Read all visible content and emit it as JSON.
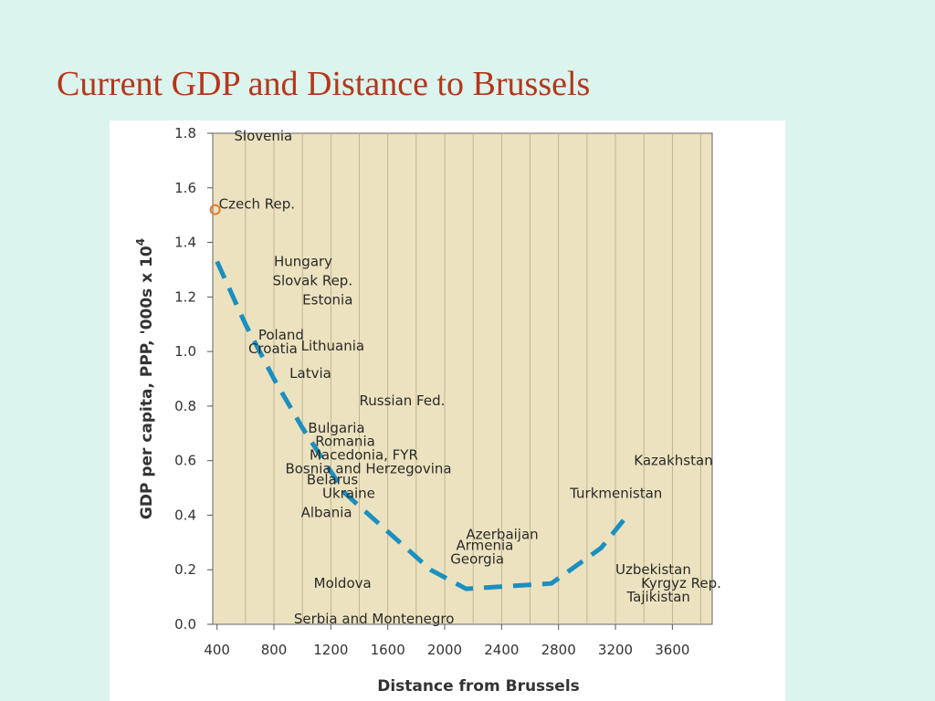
{
  "slide": {
    "title": "Current GDP and Distance to Brussels"
  },
  "chart_data": {
    "type": "scatter",
    "xlabel": "Distance from Brussels",
    "ylabel": "GDP per capita,  PPP, '000s x 10",
    "ylabel_sup": "4",
    "xlim": [
      370,
      3880
    ],
    "ylim": [
      0,
      1.8
    ],
    "xticks": [
      400,
      800,
      1200,
      1600,
      2000,
      2400,
      2800,
      3200,
      3600
    ],
    "yticks": [
      0.0,
      0.2,
      0.4,
      0.6,
      0.8,
      1.0,
      1.2,
      1.4,
      1.6,
      1.8
    ],
    "ytick_labels": [
      "0.0",
      "0.2",
      "0.4",
      "0.6",
      "0.8",
      "1.0",
      "1.2",
      "1.4",
      "1.6",
      "1.8"
    ],
    "grid": true,
    "plot_background": "#ece2bf",
    "trend_color": "#1b8fc0",
    "points": [
      {
        "label": "Slovenia",
        "x": 520,
        "y": 1.79
      },
      {
        "label": "Czech Rep.",
        "x": 400,
        "y": 1.52
      },
      {
        "label": "Hungary",
        "x": 800,
        "y": 1.33
      },
      {
        "label": "Slovak Rep.",
        "x": 790,
        "y": 1.26
      },
      {
        "label": "Estonia",
        "x": 1000,
        "y": 1.19
      },
      {
        "label": "Poland",
        "x": 690,
        "y": 1.06
      },
      {
        "label": "Croatia",
        "x": 620,
        "y": 1.01
      },
      {
        "label": "Lithuania",
        "x": 990,
        "y": 1.02
      },
      {
        "label": "Latvia",
        "x": 910,
        "y": 0.92
      },
      {
        "label": "Russian Fed.",
        "x": 1400,
        "y": 0.82
      },
      {
        "label": "Bulgaria",
        "x": 1040,
        "y": 0.72
      },
      {
        "label": "Romania",
        "x": 1090,
        "y": 0.67
      },
      {
        "label": "Macedonia, FYR",
        "x": 1050,
        "y": 0.62
      },
      {
        "label": "Bosnia and Herzegovina",
        "x": 880,
        "y": 0.57
      },
      {
        "label": "Belarus",
        "x": 1030,
        "y": 0.53
      },
      {
        "label": "Ukraine",
        "x": 1140,
        "y": 0.48
      },
      {
        "label": "Albania",
        "x": 990,
        "y": 0.41
      },
      {
        "label": "Azerbaijan",
        "x": 2150,
        "y": 0.33
      },
      {
        "label": "Armenia",
        "x": 2080,
        "y": 0.29
      },
      {
        "label": "Georgia",
        "x": 2040,
        "y": 0.24
      },
      {
        "label": "Moldova",
        "x": 1080,
        "y": 0.15
      },
      {
        "label": "Serbia and Montenegro",
        "x": 940,
        "y": 0.02
      },
      {
        "label": "Kazakhstan",
        "x": 3330,
        "y": 0.6
      },
      {
        "label": "Turkmenistan",
        "x": 2880,
        "y": 0.48
      },
      {
        "label": "Uzbekistan",
        "x": 3200,
        "y": 0.2
      },
      {
        "label": "Kyrgyz Rep.",
        "x": 3380,
        "y": 0.15
      },
      {
        "label": "Tajikistan",
        "x": 3280,
        "y": 0.1
      }
    ],
    "trend": [
      {
        "x": 400,
        "y": 1.33
      },
      {
        "x": 600,
        "y": 1.1
      },
      {
        "x": 800,
        "y": 0.9
      },
      {
        "x": 1000,
        "y": 0.72
      },
      {
        "x": 1300,
        "y": 0.48
      },
      {
        "x": 1600,
        "y": 0.34
      },
      {
        "x": 1900,
        "y": 0.2
      },
      {
        "x": 2150,
        "y": 0.13
      },
      {
        "x": 2750,
        "y": 0.15
      },
      {
        "x": 3100,
        "y": 0.28
      },
      {
        "x": 3300,
        "y": 0.41
      }
    ],
    "highlight": {
      "label": "Czech Rep.",
      "color": "#e07a2c"
    }
  }
}
